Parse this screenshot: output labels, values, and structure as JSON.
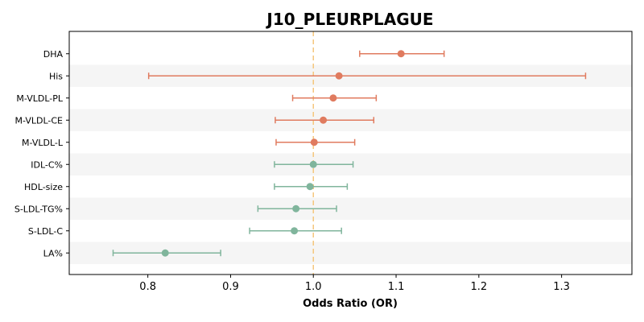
{
  "chart_data": {
    "type": "forest",
    "title": "J10_PLEURPLAGUE",
    "xlabel": "Odds Ratio (OR)",
    "xlim": [
      0.705,
      1.385
    ],
    "xticks": [
      0.8,
      0.9,
      1.0,
      1.1,
      1.2,
      1.3
    ],
    "xtick_labels": [
      "0.8",
      "0.9",
      "1.0",
      "1.1",
      "1.2",
      "1.3"
    ],
    "reference_line": 1.0,
    "reference_color": "#f5c77e",
    "colors": {
      "risk": "#e07b5f",
      "protective": "#80b59c",
      "band": "#f5f5f5"
    },
    "rows": [
      {
        "label": "DHA",
        "or": 1.106,
        "lower": 1.056,
        "upper": 1.158,
        "group": "risk"
      },
      {
        "label": "His",
        "or": 1.031,
        "lower": 0.801,
        "upper": 1.329,
        "group": "risk"
      },
      {
        "label": "M-VLDL-PL",
        "or": 1.024,
        "lower": 0.975,
        "upper": 1.076,
        "group": "risk"
      },
      {
        "label": "M-VLDL-CE",
        "or": 1.012,
        "lower": 0.954,
        "upper": 1.073,
        "group": "risk"
      },
      {
        "label": "M-VLDL-L",
        "or": 1.001,
        "lower": 0.955,
        "upper": 1.05,
        "group": "risk"
      },
      {
        "label": "IDL-C%",
        "or": 1.0,
        "lower": 0.953,
        "upper": 1.048,
        "group": "protective"
      },
      {
        "label": "HDL-size",
        "or": 0.996,
        "lower": 0.953,
        "upper": 1.041,
        "group": "protective"
      },
      {
        "label": "S-LDL-TG%",
        "or": 0.979,
        "lower": 0.933,
        "upper": 1.028,
        "group": "protective"
      },
      {
        "label": "S-LDL-C",
        "or": 0.977,
        "lower": 0.923,
        "upper": 1.034,
        "group": "protective"
      },
      {
        "label": "LA%",
        "or": 0.821,
        "lower": 0.758,
        "upper": 0.888,
        "group": "protective"
      }
    ]
  }
}
